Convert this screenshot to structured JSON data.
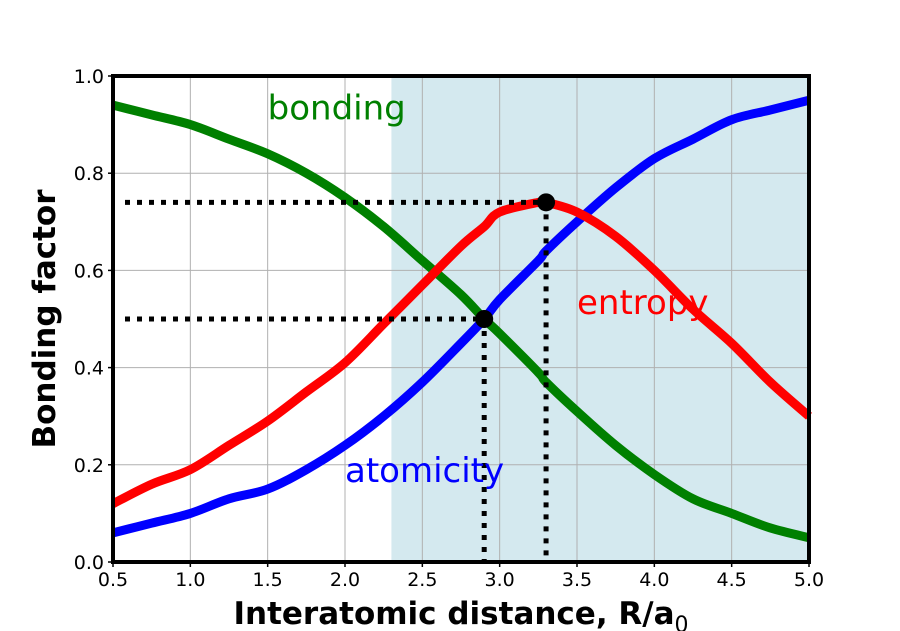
{
  "chart_data": {
    "type": "line",
    "xlabel": "Interatomic distance, R/a",
    "xlabel_sub": "0",
    "ylabel": "Bonding factor",
    "xlim": [
      0.5,
      5.0
    ],
    "ylim": [
      0.0,
      1.0
    ],
    "grid": true,
    "x_ticks": [
      "0.5",
      "1.0",
      "1.5",
      "2.0",
      "2.5",
      "3.0",
      "3.5",
      "4.0",
      "4.5",
      "5.0"
    ],
    "y_ticks": [
      "0.0",
      "0.2",
      "0.4",
      "0.6",
      "0.8",
      "1.0"
    ],
    "shaded_region": {
      "x": [
        2.3,
        5.0
      ],
      "color": "#d4e9ef"
    },
    "x": [
      0.5,
      0.75,
      1.0,
      1.25,
      1.5,
      1.75,
      2.0,
      2.25,
      2.5,
      2.75,
      2.9,
      3.0,
      3.25,
      3.3,
      3.5,
      3.75,
      4.0,
      4.25,
      4.5,
      4.75,
      5.0
    ],
    "series": [
      {
        "name": "bonding",
        "color": "#008000",
        "values": [
          0.94,
          0.92,
          0.9,
          0.87,
          0.84,
          0.8,
          0.75,
          0.69,
          0.62,
          0.55,
          0.5,
          0.47,
          0.39,
          0.37,
          0.31,
          0.24,
          0.18,
          0.13,
          0.1,
          0.07,
          0.05
        ]
      },
      {
        "name": "atomicity",
        "color": "#0000ff",
        "values": [
          0.06,
          0.08,
          0.1,
          0.13,
          0.15,
          0.19,
          0.24,
          0.3,
          0.37,
          0.45,
          0.5,
          0.54,
          0.62,
          0.64,
          0.7,
          0.77,
          0.83,
          0.87,
          0.91,
          0.93,
          0.95
        ]
      },
      {
        "name": "entropy",
        "color": "#ff0000",
        "values": [
          0.12,
          0.16,
          0.19,
          0.24,
          0.29,
          0.35,
          0.41,
          0.49,
          0.57,
          0.65,
          0.69,
          0.72,
          0.74,
          0.74,
          0.72,
          0.67,
          0.6,
          0.52,
          0.45,
          0.37,
          0.3
        ]
      }
    ],
    "markers": [
      {
        "x": 2.9,
        "y": 0.5
      },
      {
        "x": 3.3,
        "y": 0.74
      }
    ],
    "labels": [
      {
        "text": "bonding",
        "color": "#008000",
        "x": 1.5,
        "y": 0.91
      },
      {
        "text": "atomicity",
        "color": "#0000ff",
        "x": 2.0,
        "y": 0.165
      },
      {
        "text": "entropy",
        "color": "#ff0000",
        "x": 3.5,
        "y": 0.51
      }
    ]
  }
}
